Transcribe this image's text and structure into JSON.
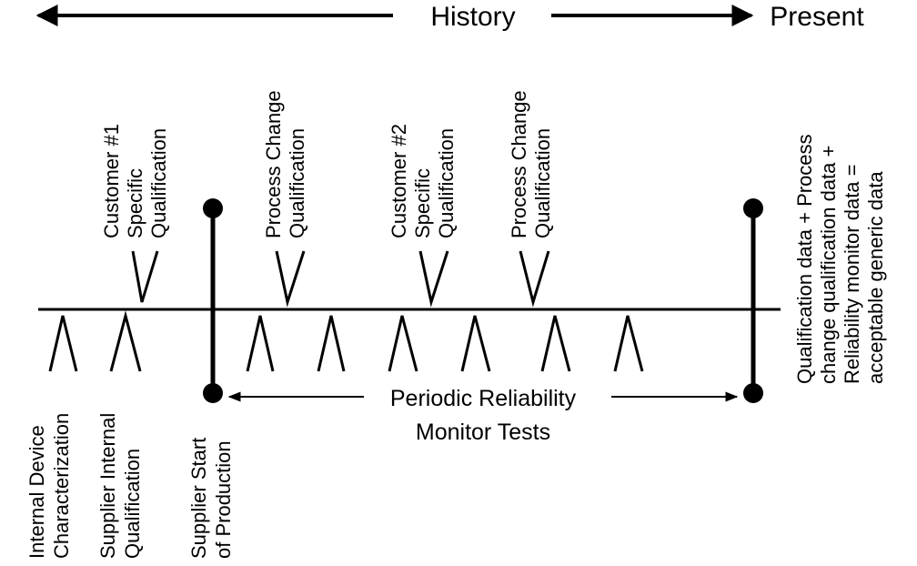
{
  "header": {
    "history": "History",
    "present": "Present"
  },
  "above_labels": [
    {
      "lines": [
        "Customer #1",
        "Specific",
        "Qualification"
      ]
    },
    {
      "lines": [
        "Process Change",
        "Qualification"
      ]
    },
    {
      "lines": [
        "Customer #2",
        "Specific",
        "Qualification"
      ]
    },
    {
      "lines": [
        "Process Change",
        "Qualification"
      ]
    }
  ],
  "below_labels": [
    {
      "lines": [
        "Internal Device",
        "Characterization"
      ]
    },
    {
      "lines": [
        "Supplier Internal",
        "Qualification"
      ]
    },
    {
      "lines": [
        "Supplier Start",
        "of Production"
      ]
    }
  ],
  "monitor": {
    "line1": "Periodic Reliability",
    "line2": "Monitor Tests"
  },
  "right_note": {
    "lines": [
      "Qualification data + Process",
      "change qualification data +",
      "Reliability monitor data =",
      "acceptable generic data"
    ]
  }
}
